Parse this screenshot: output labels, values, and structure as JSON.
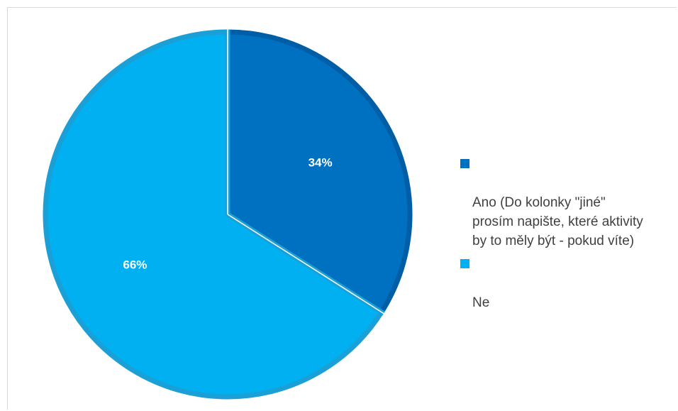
{
  "chart_data": {
    "type": "pie",
    "title": "",
    "start_angle_deg": 0,
    "direction": "clockwise",
    "legend_position": "right",
    "slices": [
      {
        "label": "Ano (Do kolonky \"jiné\"\nprosím napište, které aktivity\nby to měly být - pokud víte)",
        "value": 34,
        "data_label": "34%",
        "color": "#0070c0",
        "edge_color": "#005ea6"
      },
      {
        "label": "Ne",
        "value": 66,
        "data_label": "66%",
        "color": "#00b0f0",
        "edge_color": "#1a9fd6"
      }
    ]
  }
}
